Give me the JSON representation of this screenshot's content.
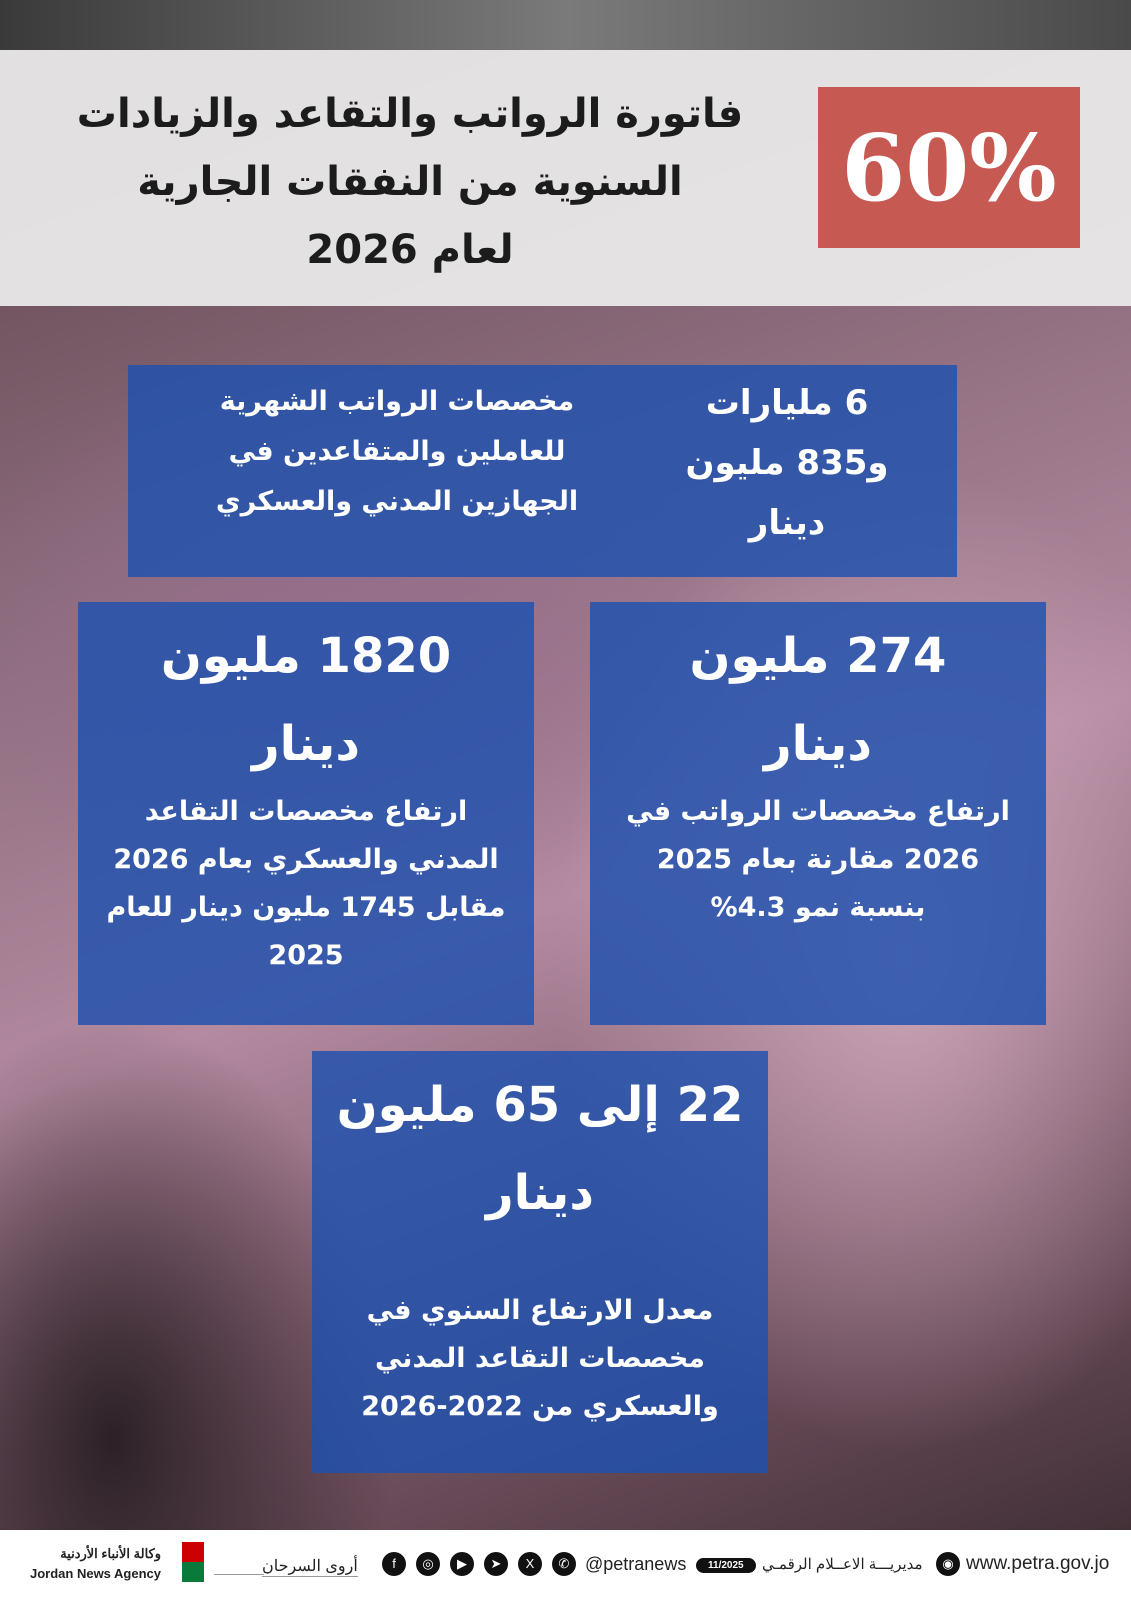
{
  "header": {
    "percent": "60%",
    "title_lines": [
      "فاتورة الرواتب والتقاعد والزيادات",
      "السنوية  من النفقات الجارية",
      "لعام 2026"
    ]
  },
  "box1": {
    "value_lines": [
      "6 مليارات",
      "و835 مليون",
      "دينار"
    ],
    "desc_lines": [
      "مخصصات الرواتب الشهرية",
      "للعاملين والمتقاعدين في",
      "الجهازين المدني والعسكري"
    ]
  },
  "box2": {
    "value_lines": [
      "1820 مليون",
      "دينار"
    ],
    "desc_lines": [
      "ارتفاع مخصصات التقاعد",
      "المدني والعسكري بعام 2026",
      "مقابل 1745 مليون دينار للعام",
      "2025"
    ]
  },
  "box3": {
    "value_lines": [
      "274 مليون",
      "دينار"
    ],
    "desc_lines": [
      "ارتفاع مخصصات الرواتب في",
      "2026 مقارنة بعام 2025",
      "بنسبة نمو 4.3%"
    ]
  },
  "box4": {
    "value_lines": [
      "22 إلى 65 مليون",
      "دينار"
    ],
    "desc_lines": [
      "معدل الارتفاع السنوي في",
      "مخصصات التقاعد المدني",
      "والعسكري من 2022-2026"
    ]
  },
  "footer": {
    "agency_ar": "وكالة الأنباء الأردنية",
    "agency_en": "Jordan News Agency",
    "author": "أروى السرحان",
    "handle": "@petranews",
    "date": "11/2025",
    "department": "مديريـــة الاعــلام الرقمـي",
    "website": "www.petra.gov.jo",
    "social_icons": [
      "facebook",
      "instagram",
      "youtube",
      "telegram",
      "x",
      "whatsapp"
    ]
  },
  "colors": {
    "accent_red": "#c65a52",
    "box_blue": "#1e50af"
  }
}
